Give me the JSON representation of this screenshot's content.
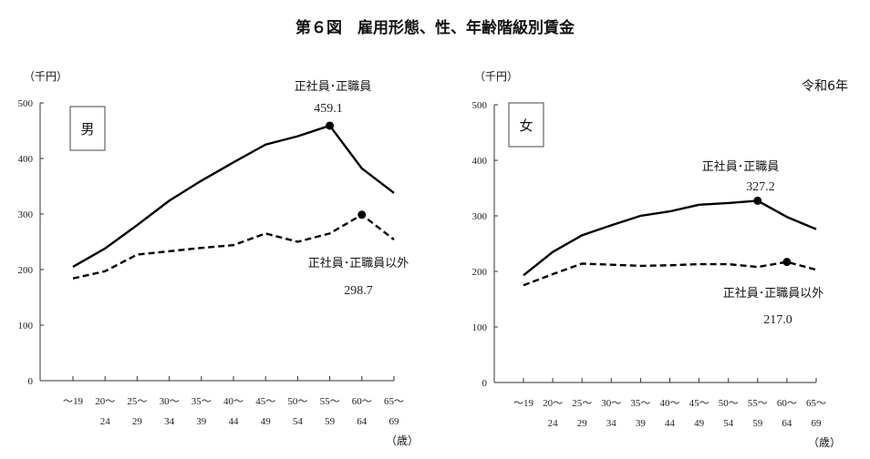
{
  "title": "第６図　雇用形態、性、年齢階級別賃金",
  "year_label": "令和6年",
  "chart_data": [
    {
      "type": "line",
      "panel_label": "男",
      "ylabel": "（千円）",
      "xlabel": "（歳）",
      "ylim": [
        0,
        500
      ],
      "yticks": [
        "0",
        "100",
        "200",
        "300",
        "400",
        "500"
      ],
      "categories": [
        [
          "～19",
          ""
        ],
        [
          "20～",
          "24"
        ],
        [
          "25～",
          "29"
        ],
        [
          "30～",
          "34"
        ],
        [
          "35～",
          "39"
        ],
        [
          "40～",
          "44"
        ],
        [
          "45～",
          "49"
        ],
        [
          "50～",
          "54"
        ],
        [
          "55～",
          "59"
        ],
        [
          "60～",
          "64"
        ],
        [
          "65～",
          "69"
        ]
      ],
      "series": [
        {
          "name": "正社員･正職員",
          "style": "solid",
          "values": [
            205,
            238,
            280,
            324,
            360,
            393,
            425,
            440,
            459.1,
            382,
            338
          ],
          "peak_index": 8,
          "peak_label": "459.1"
        },
        {
          "name": "正社員･正職員以外",
          "style": "dashed",
          "values": [
            184,
            197,
            227,
            233,
            239,
            244,
            265,
            250,
            265,
            298.7,
            254
          ],
          "peak_index": 9,
          "peak_label": "298.7"
        }
      ]
    },
    {
      "type": "line",
      "panel_label": "女",
      "ylabel": "（千円）",
      "xlabel": "（歳）",
      "ylim": [
        0,
        500
      ],
      "yticks": [
        "0",
        "100",
        "200",
        "300",
        "400",
        "500"
      ],
      "categories": [
        [
          "～19",
          ""
        ],
        [
          "20～",
          "24"
        ],
        [
          "25～",
          "29"
        ],
        [
          "30～",
          "34"
        ],
        [
          "35～",
          "39"
        ],
        [
          "40～",
          "44"
        ],
        [
          "45～",
          "49"
        ],
        [
          "50～",
          "54"
        ],
        [
          "55～",
          "59"
        ],
        [
          "60～",
          "64"
        ],
        [
          "65～",
          "69"
        ]
      ],
      "series": [
        {
          "name": "正社員･正職員",
          "style": "solid",
          "values": [
            193,
            235,
            265,
            283,
            300,
            308,
            320,
            323,
            327.2,
            298,
            276
          ],
          "peak_index": 8,
          "peak_label": "327.2"
        },
        {
          "name": "正社員･正職員以外",
          "style": "dashed",
          "values": [
            175,
            195,
            214,
            212,
            210,
            211,
            213,
            213,
            208,
            217.0,
            203
          ],
          "peak_index": 9,
          "peak_label": "217.0"
        }
      ]
    }
  ]
}
